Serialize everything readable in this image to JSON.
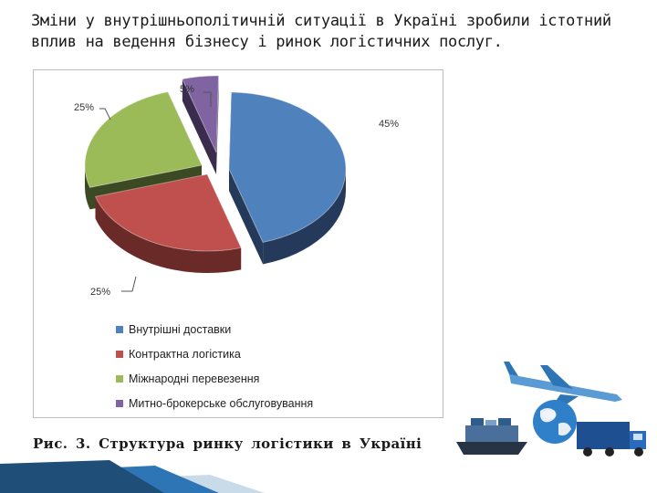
{
  "slide": {
    "title": "Зміни у внутрішньополітичній ситуації в Україні зробили істотний вплив на ведення бізнесу і ринок логістичних послуг."
  },
  "figure": {
    "caption": "Рис. 3. Структура ринку логістики в Україні"
  },
  "chart_data": {
    "type": "pie",
    "title": "",
    "legend_position": "bottom-left",
    "slices": [
      {
        "name": "Внутрішні доставки",
        "value": 45,
        "label": "45%",
        "color": "#4f81bd",
        "dark": "#25395a"
      },
      {
        "name": "Контрактна логістика",
        "value": 25,
        "label": "25%",
        "color": "#c0504d",
        "dark": "#6a2a28"
      },
      {
        "name": "Міжнародні перевезення",
        "value": 25,
        "label": "25%",
        "color": "#9bbb59",
        "dark": "#3b4a22"
      },
      {
        "name": "Митно-брокерське обслуговування",
        "value": 5,
        "label": "5%",
        "color": "#8064a2",
        "dark": "#3a2c4d"
      }
    ]
  },
  "decor": {
    "band_colors": [
      "#1f4e79",
      "#2e75b6",
      "#c9dbe9"
    ],
    "illustration_icon": "transport-logistics-icon"
  }
}
